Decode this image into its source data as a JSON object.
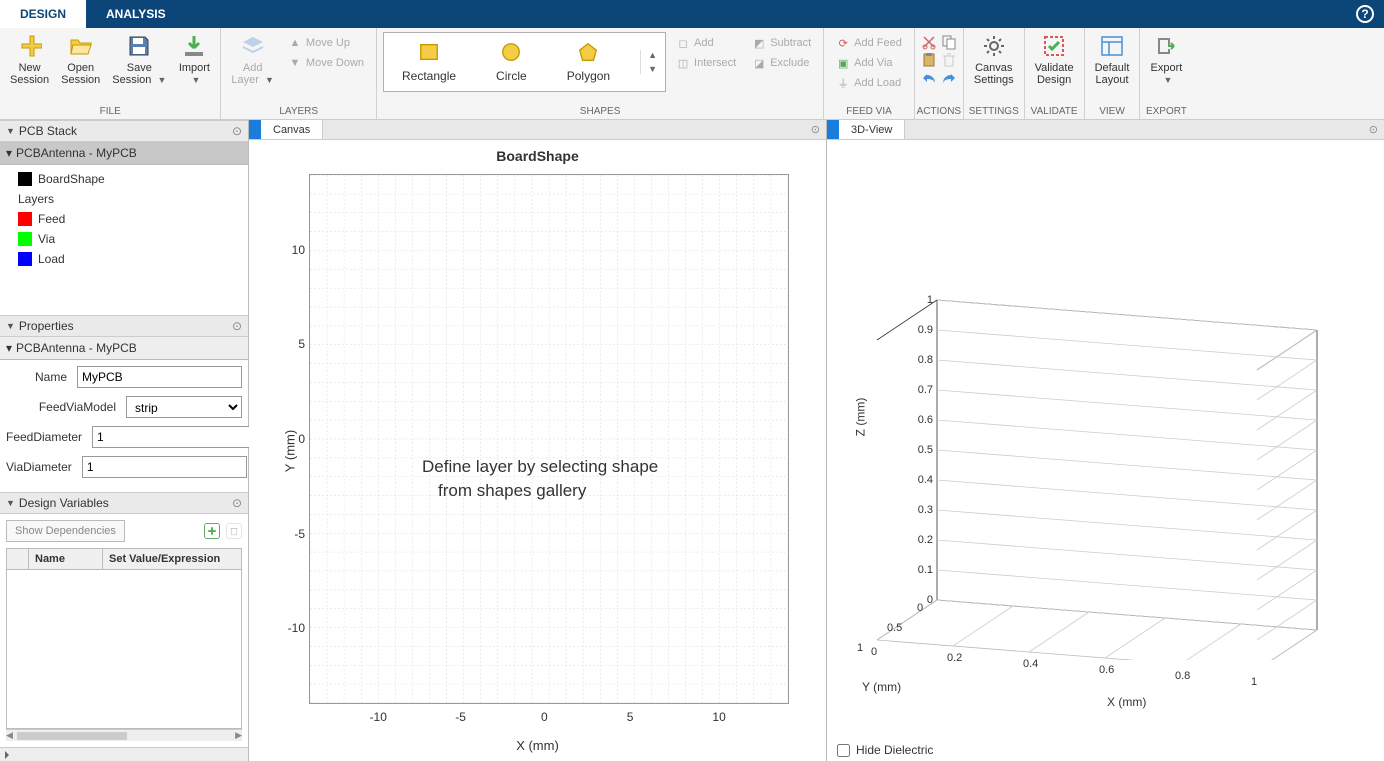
{
  "tabs": {
    "design": "DESIGN",
    "analysis": "ANALYSIS"
  },
  "ribbon": {
    "file": {
      "label": "FILE",
      "new_session": "New\nSession",
      "open_session": "Open\nSession",
      "save_session": "Save\nSession",
      "import": "Import"
    },
    "layers": {
      "label": "LAYERS",
      "add_layer": "Add\nLayer",
      "move_up": "Move Up",
      "move_down": "Move Down"
    },
    "shapes": {
      "label": "SHAPES",
      "rectangle": "Rectangle",
      "circle": "Circle",
      "polygon": "Polygon",
      "add": "Add",
      "subtract": "Subtract",
      "intersect": "Intersect",
      "exclude": "Exclude"
    },
    "feedvia": {
      "label": "FEED VIA",
      "add_feed": "Add Feed",
      "add_via": "Add Via",
      "add_load": "Add Load"
    },
    "actions": {
      "label": "ACTIONS"
    },
    "settings": {
      "label": "SETTINGS",
      "canvas_settings": "Canvas\nSettings"
    },
    "validate": {
      "label": "VALIDATE",
      "validate_design": "Validate\nDesign"
    },
    "view": {
      "label": "VIEW",
      "default_layout": "Default\nLayout"
    },
    "export": {
      "label": "EXPORT",
      "export": "Export"
    }
  },
  "panels": {
    "pcb_stack": {
      "title": "PCB Stack",
      "subtitle": "PCBAntenna - MyPCB",
      "items": {
        "boardshape": {
          "label": "BoardShape",
          "color": "#000000"
        },
        "layers_label": "Layers",
        "feed": {
          "label": "Feed",
          "color": "#ff0000"
        },
        "via": {
          "label": "Via",
          "color": "#00ff00"
        },
        "load": {
          "label": "Load",
          "color": "#0000ff"
        }
      }
    },
    "properties": {
      "title": "Properties",
      "subtitle": "PCBAntenna - MyPCB",
      "rows": {
        "name": {
          "label": "Name",
          "value": "MyPCB"
        },
        "feedviamodel": {
          "label": "FeedViaModel",
          "value": "strip"
        },
        "feeddiameter": {
          "label": "FeedDiameter",
          "value": "1"
        },
        "viadiameter": {
          "label": "ViaDiameter",
          "value": "1"
        }
      }
    },
    "design_vars": {
      "title": "Design Variables",
      "show_deps": "Show Dependencies",
      "col_name": "Name",
      "col_setval": "Set Value/Expression"
    }
  },
  "canvas": {
    "tab": "Canvas",
    "title": "BoardShape",
    "xlabel": "X (mm)",
    "ylabel": "Y (mm)",
    "message_l1": "Define layer by selecting shape",
    "message_l2": "from shapes gallery",
    "xlim": [
      -14,
      14
    ],
    "ylim": [
      -14,
      14
    ],
    "x_ticks": [
      -10,
      -5,
      0,
      5,
      10
    ],
    "y_ticks": [
      -10,
      -5,
      0,
      5,
      10
    ]
  },
  "view3d": {
    "tab": "3D-View",
    "xlabel": "X (mm)",
    "ylabel": "Y (mm)",
    "zlabel": "Z (mm)",
    "z_ticks": [
      0,
      0.1,
      0.2,
      0.3,
      0.4,
      0.5,
      0.6,
      0.7,
      0.8,
      0.9,
      1
    ],
    "x_ticks": [
      0,
      0.2,
      0.4,
      0.6,
      0.8,
      1
    ],
    "y_ticks": [
      0,
      0.5,
      1
    ],
    "hide_dielectric": "Hide Dielectric"
  },
  "colors": {
    "tabbar": "#0c4679",
    "accent": "#1a7cdb",
    "shape_fill": "#f3cd45",
    "shape_stroke": "#c79a00"
  }
}
